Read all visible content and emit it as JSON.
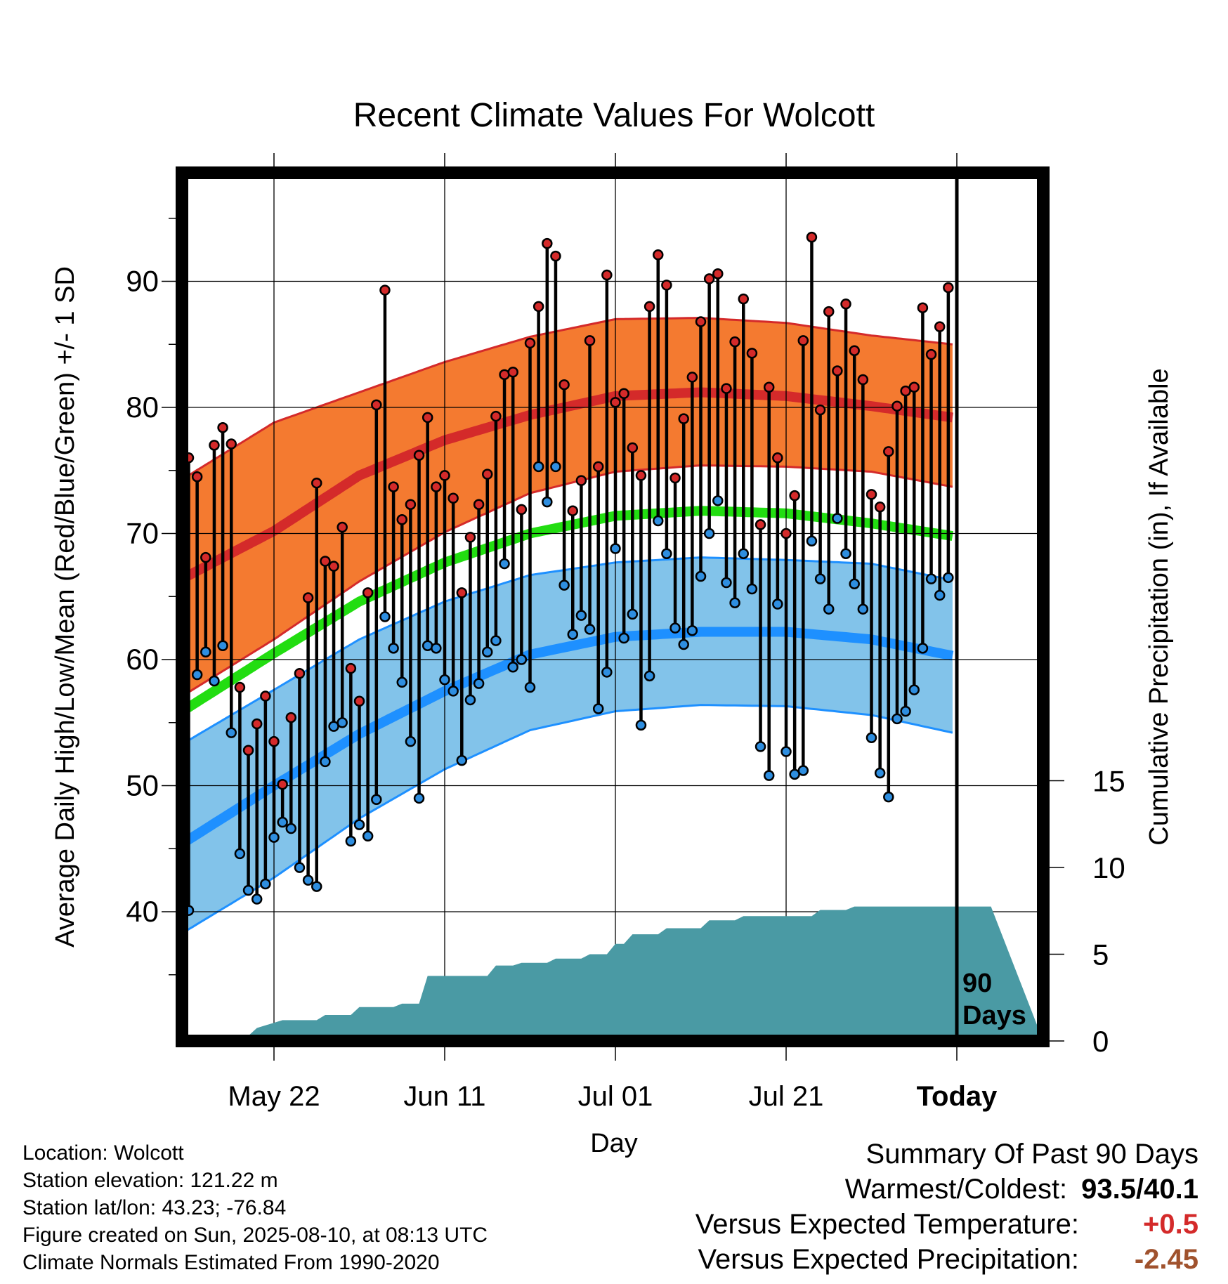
{
  "colors": {
    "high_band": "#f47a30",
    "high_mean": "#d42a2a",
    "low_band": "#82c3ea",
    "low_mean": "#1e90ff",
    "mean_line": "#22dd11",
    "precip_fill": "#4a9aa4",
    "high_marker": "#d42a2a",
    "low_marker": "#2e8ee0",
    "warm_value": "#d42a2a",
    "dry_value": "#a0522d"
  },
  "chart_data": {
    "type": "line",
    "title": "Recent Climate Values For Wolcott",
    "xlabel": "Day",
    "ylabel": "Average Daily High/Low/Mean (Red/Blue/Green) +/- 1 SD",
    "y2label": "Cumulative Precipitation (in), If Available",
    "x_tick_labels": [
      "May 22",
      "Jun 11",
      "Jul 01",
      "Jul 21",
      "Today"
    ],
    "x_tick_days": [
      10,
      30,
      50,
      70,
      90
    ],
    "xlim": [
      -1.5,
      94
    ],
    "y_ticks": [
      40,
      50,
      60,
      70,
      80,
      90
    ],
    "ylim": [
      30,
      98
    ],
    "y2_ticks": [
      0,
      5,
      10,
      15
    ],
    "y2lim": [
      0,
      32
    ],
    "grid": true,
    "today_label": "90\nDays",
    "today_day": 90,
    "daily_high": [
      76.0,
      74.5,
      68.1,
      77.0,
      78.4,
      77.1,
      57.8,
      52.8,
      54.9,
      57.1,
      53.5,
      50.1,
      55.4,
      58.9,
      64.9,
      74.0,
      67.8,
      67.4,
      70.5,
      59.3,
      56.7,
      65.3,
      80.2,
      89.3,
      73.7,
      71.1,
      72.3,
      76.2,
      79.2,
      73.7,
      74.6,
      72.8,
      65.3,
      69.7,
      72.3,
      74.7,
      79.3,
      82.6,
      82.8,
      71.9,
      85.1,
      88.0,
      93.0,
      92.0,
      81.8,
      71.8,
      74.2,
      85.3,
      75.3,
      90.5,
      80.4,
      81.1,
      76.8,
      74.6,
      88.0,
      92.1,
      89.7,
      74.4,
      79.1,
      82.4,
      86.8,
      90.2,
      90.6,
      81.5,
      85.2,
      88.6,
      84.3,
      70.7,
      81.6,
      76.0,
      70.0,
      73.0,
      85.3,
      93.5,
      79.8,
      87.6,
      82.9,
      88.2,
      84.5,
      82.2,
      73.1,
      72.1,
      76.5,
      80.1,
      81.3,
      81.6,
      87.9,
      84.2,
      86.4,
      89.5
    ],
    "daily_low": [
      40.1,
      58.8,
      60.6,
      58.3,
      61.1,
      54.2,
      44.6,
      41.7,
      41.0,
      42.2,
      45.9,
      47.1,
      46.6,
      43.5,
      42.5,
      42.0,
      51.9,
      54.7,
      55.0,
      45.6,
      46.9,
      46.0,
      48.9,
      63.4,
      60.9,
      58.2,
      53.5,
      49.0,
      61.1,
      60.9,
      58.4,
      57.5,
      52.0,
      56.8,
      58.1,
      60.6,
      61.5,
      67.6,
      59.4,
      60.0,
      57.8,
      75.3,
      72.5,
      75.3,
      65.9,
      62.0,
      63.5,
      62.4,
      56.1,
      59.0,
      68.8,
      61.7,
      63.6,
      54.8,
      58.7,
      71.0,
      68.4,
      62.5,
      61.2,
      62.3,
      66.6,
      70.0,
      72.6,
      66.1,
      64.5,
      68.4,
      65.6,
      53.1,
      50.8,
      64.4,
      52.7,
      50.9,
      51.2,
      69.4,
      66.4,
      64.0,
      71.2,
      68.4,
      66.0,
      64.0,
      53.8,
      51.0,
      49.1,
      55.3,
      55.9,
      57.6,
      60.9,
      66.4,
      65.1,
      66.5
    ],
    "normal_high_mean": [
      66.5,
      70.2,
      74.6,
      77.4,
      79.4,
      80.9,
      81.2,
      80.9,
      80.1,
      79.2
    ],
    "normal_high_upper": [
      74.4,
      78.8,
      81.2,
      83.6,
      85.6,
      87.0,
      87.1,
      86.7,
      85.7,
      85.0
    ],
    "normal_high_lower": [
      57.2,
      61.6,
      66.2,
      70.1,
      73.2,
      74.9,
      75.4,
      75.3,
      74.9,
      73.7
    ],
    "normal_mean": [
      56.0,
      60.5,
      64.6,
      67.7,
      70.0,
      71.4,
      71.8,
      71.6,
      70.8,
      69.8
    ],
    "normal_low_mean": [
      45.5,
      50.0,
      54.1,
      57.5,
      60.4,
      61.8,
      62.2,
      62.2,
      61.6,
      60.3
    ],
    "normal_low_upper": [
      53.4,
      57.6,
      61.6,
      64.6,
      66.7,
      67.7,
      68.1,
      67.9,
      67.6,
      66.3
    ],
    "normal_low_lower": [
      38.4,
      42.7,
      47.4,
      51.3,
      54.4,
      55.9,
      56.4,
      56.3,
      55.6,
      54.2
    ],
    "normal_days": [
      -0.5,
      10,
      20,
      30,
      40,
      50,
      60,
      70,
      80,
      89.5
    ],
    "precip_days": [
      -0.5,
      3,
      3.5,
      7,
      8,
      11,
      12,
      15,
      16,
      19,
      20,
      24,
      25,
      27,
      28,
      35,
      36,
      38,
      39,
      42,
      43,
      46,
      47,
      49,
      50,
      51,
      52,
      55,
      56,
      60,
      61,
      64,
      65,
      73,
      74,
      77,
      78,
      94
    ],
    "precip_cum": [
      0.0,
      0.0,
      0.3,
      0.3,
      0.75,
      1.2,
      1.2,
      1.2,
      1.5,
      1.5,
      1.95,
      1.95,
      2.15,
      2.15,
      3.75,
      3.75,
      4.35,
      4.35,
      4.5,
      4.5,
      4.75,
      4.75,
      5.0,
      5.0,
      5.6,
      5.6,
      6.15,
      6.15,
      6.5,
      6.5,
      6.95,
      6.95,
      7.2,
      7.2,
      7.55,
      7.55,
      7.75,
      7.75
    ]
  },
  "info": {
    "location": "Location: Wolcott",
    "elevation": "Station elevation: 121.22 m",
    "latlon": "Station lat/lon: 43.23; -76.84",
    "created": "Figure created on Sun, 2025-08-10, at 08:13 UTC",
    "normals": "Climate Normals Estimated From 1990-2020"
  },
  "summary": {
    "title": "Summary Of Past 90 Days",
    "warm_cold_label": "Warmest/Coldest:",
    "warm_cold_value": "93.5/40.1",
    "temp_label": "Versus Expected Temperature:",
    "temp_value": "+0.5",
    "precip_label": "Versus Expected Precipitation:",
    "precip_value": "-2.45"
  }
}
